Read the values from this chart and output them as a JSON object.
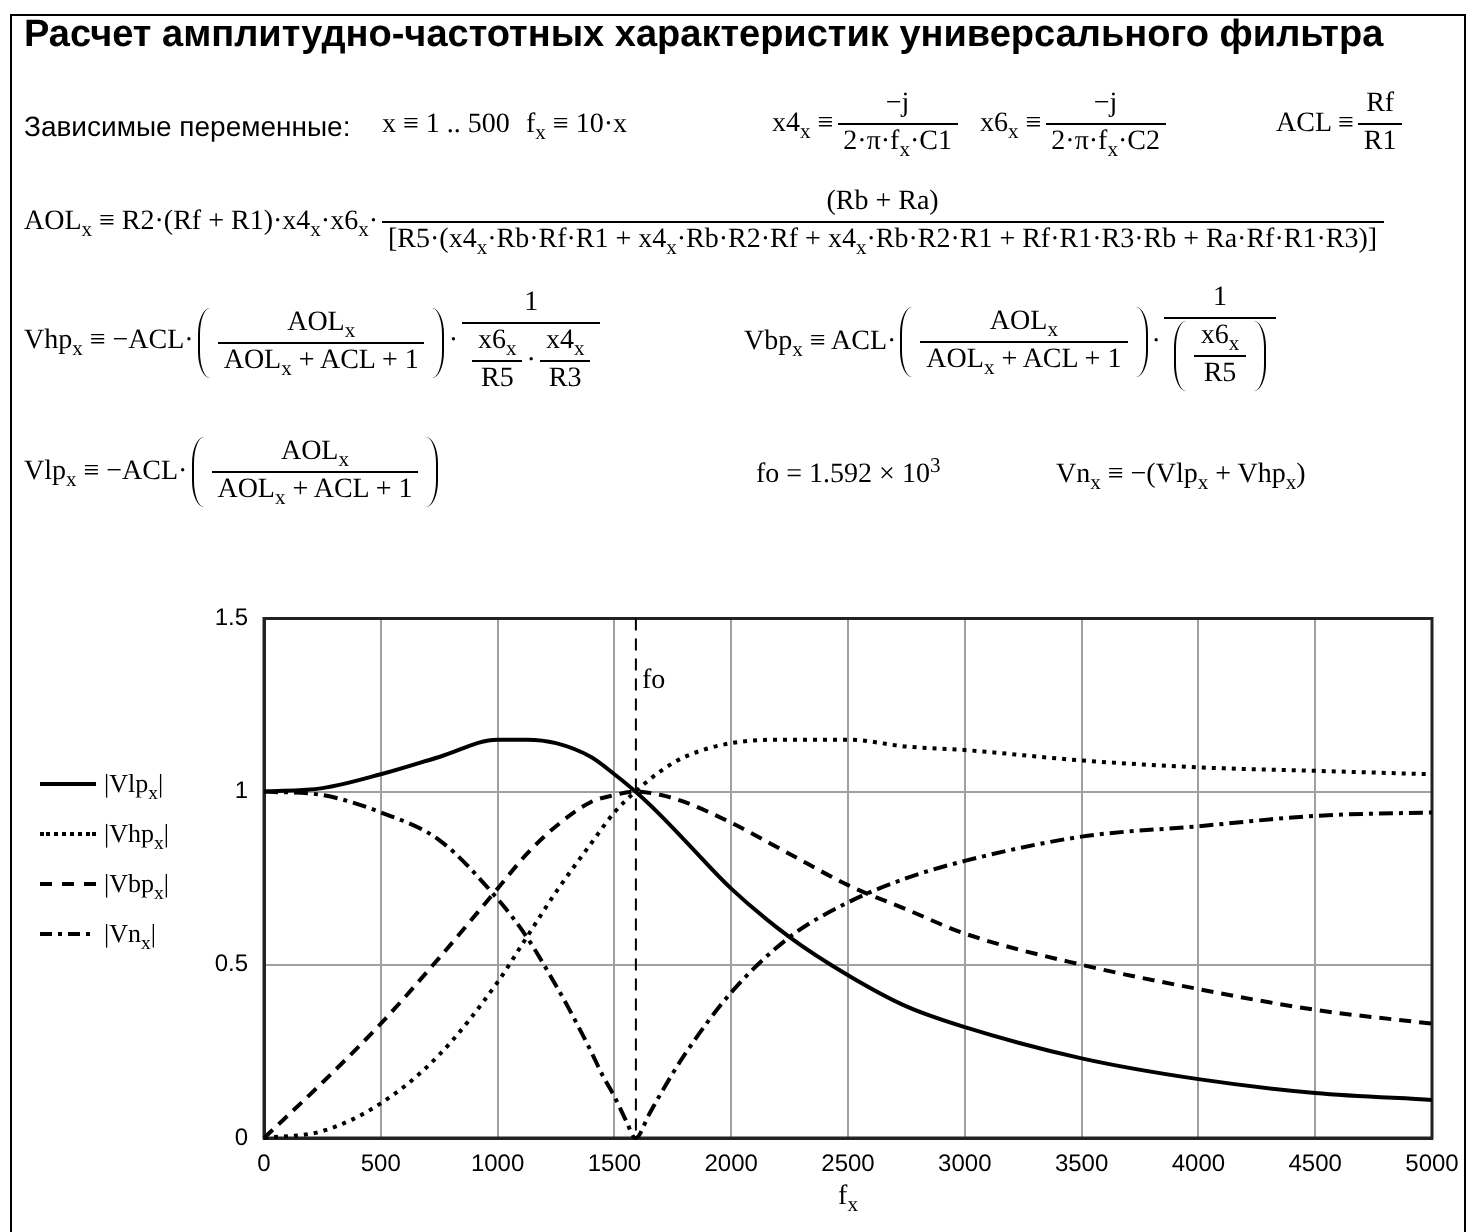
{
  "chart_data": {
    "type": "line",
    "title": "Расчет амплитудно-частотных характеристик универсального фильтра",
    "xlabel": "f$_{x}$",
    "x": [
      0,
      250,
      500,
      750,
      1000,
      1125,
      1250,
      1400,
      1500,
      1590,
      1700,
      1800,
      2000,
      2250,
      2500,
      2750,
      3000,
      3500,
      4000,
      4500,
      5000
    ],
    "series": [
      {
        "name": "|Vlp$_{x}$|",
        "color": "#000000",
        "line_style": "solid",
        "values": [
          1.0,
          1.01,
          1.05,
          1.1,
          1.15,
          1.15,
          1.14,
          1.1,
          1.05,
          1.0,
          0.93,
          0.86,
          0.72,
          0.58,
          0.47,
          0.38,
          0.32,
          0.23,
          0.17,
          0.13,
          0.11
        ]
      },
      {
        "name": "|Vhp$_{x}$|",
        "color": "#000000",
        "line_style": "dotted",
        "values": [
          0.0,
          0.02,
          0.1,
          0.24,
          0.45,
          0.58,
          0.71,
          0.85,
          0.94,
          1.0,
          1.06,
          1.1,
          1.14,
          1.15,
          1.15,
          1.13,
          1.12,
          1.09,
          1.07,
          1.06,
          1.05
        ]
      },
      {
        "name": "|Vbp$_{x}$|",
        "color": "#000000",
        "line_style": "dashed",
        "values": [
          0.0,
          0.16,
          0.33,
          0.52,
          0.72,
          0.82,
          0.9,
          0.97,
          0.99,
          1.0,
          0.99,
          0.97,
          0.91,
          0.82,
          0.73,
          0.66,
          0.59,
          0.5,
          0.43,
          0.37,
          0.33
        ]
      },
      {
        "name": "|Vn$_{x}$|",
        "color": "#000000",
        "line_style": "dashdot",
        "x": [
          0,
          250,
          500,
          750,
          1000,
          1125,
          1250,
          1300,
          1400,
          1450,
          1500,
          1550,
          1590,
          1650,
          1700,
          1800,
          2000,
          2250,
          2500,
          2750,
          3000,
          3500,
          4000,
          4500,
          5000
        ],
        "values": [
          1.0,
          0.99,
          0.94,
          0.86,
          0.69,
          0.58,
          0.44,
          0.38,
          0.25,
          0.18,
          0.12,
          0.05,
          0.0,
          0.07,
          0.13,
          0.24,
          0.42,
          0.58,
          0.68,
          0.75,
          0.8,
          0.87,
          0.9,
          0.93,
          0.94
        ]
      }
    ],
    "xlim": [
      0,
      5000
    ],
    "xticks": [
      0,
      500,
      1000,
      1500,
      2000,
      2500,
      3000,
      3500,
      4000,
      4500,
      5000
    ],
    "ylim": [
      0,
      1.5
    ],
    "yticks": [
      0,
      0.5,
      1,
      1.5
    ],
    "grid": true,
    "legend": "left",
    "marker": "none",
    "ref_lines": [
      {
        "axis": "x",
        "value": 1592,
        "label": "fo",
        "color": "#000000",
        "line_style": "dashed"
      }
    ],
    "annotations": [
      "Зависимые переменные:",
      "x ≡ 1 .. 500",
      "f$_{x}$ ≡ 10·x",
      "x4$_{x}$ ≡",
      "−j",
      "2·π·f$_{x}$·C1",
      "x6$_{x}$ ≡",
      "−j",
      "2·π·f$_{x}$·C2",
      "ACL ≡",
      "Rf",
      "R1",
      "AOL$_{x}$ ≡ R2·(Rf + R1)·x4$_{x}$·x6$_{x}$·",
      "(Rb + Ra)",
      "[R5·(x4$_{x}$·Rb·Rf·R1 + x4$_{x}$·Rb·R2·Rf + x4$_{x}$·Rb·R2·R1 + Rf·R1·R3·Rb + Ra·Rf·R1·R3)]",
      "Vhp$_{x}$ ≡ −ACL·",
      "AOL$_{x}$",
      "AOL$_{x}$ + ACL + 1",
      "·",
      "1",
      "x6$_{x}$",
      "R5",
      "·",
      "x4$_{x}$",
      "R3",
      "Vbp$_{x}$ ≡ ACL·",
      "AOL$_{x}$",
      "AOL$_{x}$ + ACL + 1",
      "·",
      "1",
      "x6$_{x}$",
      "R5",
      "Vlp$_{x}$ ≡ −ACL·",
      "AOL$_{x}$",
      "AOL$_{x}$ + ACL + 1",
      "fo = 1.592 × 10$^{3}$",
      "Vn$_{x}$ ≡ −(Vlp$_{x}$ + Vhp$_{x}$)"
    ]
  }
}
